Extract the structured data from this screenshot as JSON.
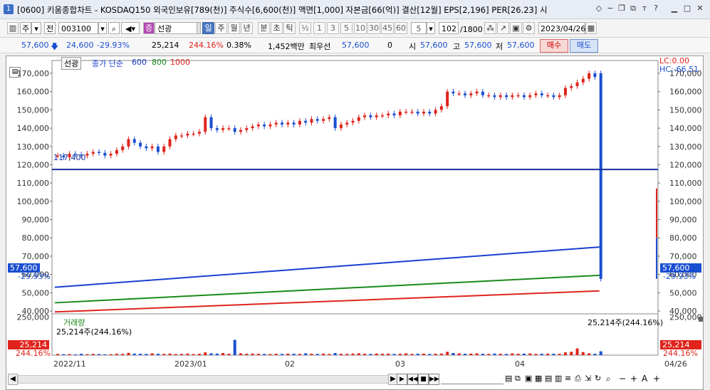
{
  "window": {
    "icon_label": "1",
    "title": "[0600] 키움종합차트 - KOSDAQ150 외국인보유[789(천)] 주식수[6,600(천)] 액면[1,000] 자본금[66(억)] 결산[12월] EPS[2,196] PER[26.23] 시"
  },
  "toolbar": {
    "period_week": "주",
    "prev": "전",
    "code": "003100",
    "stock_badge": "증",
    "stock_name": "선광",
    "periods": [
      "일",
      "주",
      "월",
      "년",
      "분",
      "초",
      "틱"
    ],
    "intervals": [
      "½",
      "1",
      "3",
      "5",
      "10",
      "30",
      "45",
      "60"
    ],
    "interval_value": "5",
    "count": "102",
    "count_max": "/1800",
    "date": "2023/04/26"
  },
  "quote": {
    "price": "57,600",
    "change": "24,600",
    "change_pct": "-29.93%",
    "volume": "25,214",
    "volume_pct": "244.16%",
    "turnover": "0.38%",
    "amount": "1,452백만",
    "sell_label": "최우선",
    "best_price": "57,600",
    "best_qty": "0",
    "open_label": "시",
    "open": "57,600",
    "high_label": "고",
    "high": "57,600",
    "low_label": "저",
    "low": "57,600",
    "buy_button": "매수",
    "sell_button": "매도"
  },
  "price_panel": {
    "name": "선광",
    "legend_label": "종가 단순",
    "ma": [
      "600",
      "800",
      "1000"
    ],
    "ma_colors": [
      "#1a3fd0",
      "#1a8a1a",
      "#e0241c"
    ],
    "lc": "LC:0.00",
    "hc": "HC:-66.51",
    "low_marker": "117,400",
    "current_tag": "57,600",
    "current_pct": "-29.93%",
    "y_ticks": [
      "170,000",
      "160,000",
      "150,000",
      "140,000",
      "130,000",
      "120,000",
      "110,000",
      "100,000",
      "90,000",
      "80,000",
      "70,000",
      "60,000",
      "50,000",
      "40,000"
    ]
  },
  "volume_panel": {
    "title": "거래량",
    "subtitle": "25,214주(244.16%)",
    "right_label": "25,214주(244.16%)",
    "tag": "25,214",
    "tag_pct": "244.16%",
    "y_ticks": [
      "250,000"
    ]
  },
  "xaxis": {
    "labels": [
      "2022/11",
      "2023/01",
      "02",
      "03",
      "04"
    ],
    "end_label": "04/26"
  },
  "chart_data": {
    "type": "candlestick",
    "ylim": [
      40000,
      175000
    ],
    "candles_close": [
      125000,
      124000,
      126000,
      125500,
      125000,
      126000,
      127000,
      126500,
      125000,
      126000,
      128000,
      130000,
      134000,
      132000,
      130000,
      129000,
      130000,
      127000,
      130000,
      134000,
      136000,
      136000,
      137000,
      137000,
      138000,
      146000,
      140000,
      139000,
      140000,
      140000,
      138000,
      139000,
      140000,
      141000,
      142000,
      141000,
      142000,
      143000,
      142000,
      143000,
      142000,
      144000,
      143000,
      145000,
      144000,
      145000,
      146000,
      140000,
      142000,
      143000,
      144000,
      146000,
      147000,
      146000,
      147000,
      147000,
      148000,
      147000,
      149000,
      149000,
      149000,
      148000,
      149000,
      148000,
      150000,
      152000,
      160000,
      159000,
      159000,
      158000,
      159000,
      160000,
      158000,
      158000,
      157000,
      158000,
      157000,
      158000,
      158000,
      157000,
      158000,
      159000,
      158000,
      158000,
      157000,
      158000,
      162000,
      163000,
      165000,
      167000,
      170000,
      168000,
      57600
    ],
    "ma600_start": 53000,
    "ma600_end": 75000,
    "ma800_start": 44500,
    "ma800_end": 59500,
    "ma1000_start": 39500,
    "ma1000_end": 51000,
    "volume": [
      8000,
      6000,
      7000,
      5000,
      9000,
      6000,
      8000,
      7000,
      5000,
      6000,
      9000,
      8000,
      15000,
      10000,
      9000,
      8000,
      12000,
      9000,
      8000,
      10000,
      7000,
      8000,
      10000,
      7000,
      9000,
      18000,
      12000,
      10000,
      14000,
      9000,
      100000,
      12000,
      9000,
      10000,
      9000,
      8000,
      7000,
      9000,
      8000,
      10000,
      9000,
      8000,
      12000,
      9000,
      8000,
      10000,
      7000,
      14000,
      9000,
      8000,
      10000,
      12000,
      9000,
      8000,
      11000,
      9000,
      10000,
      8000,
      9000,
      12000,
      8000,
      9000,
      10000,
      8000,
      9000,
      10000,
      22000,
      14000,
      12000,
      9000,
      10000,
      12000,
      9000,
      8000,
      10000,
      9000,
      8000,
      12000,
      9000,
      10000,
      11000,
      8000,
      9000,
      10000,
      9000,
      8000,
      18000,
      22000,
      44000,
      20000,
      12000,
      9000,
      25214
    ],
    "volume_ylim": [
      0,
      270000
    ]
  }
}
